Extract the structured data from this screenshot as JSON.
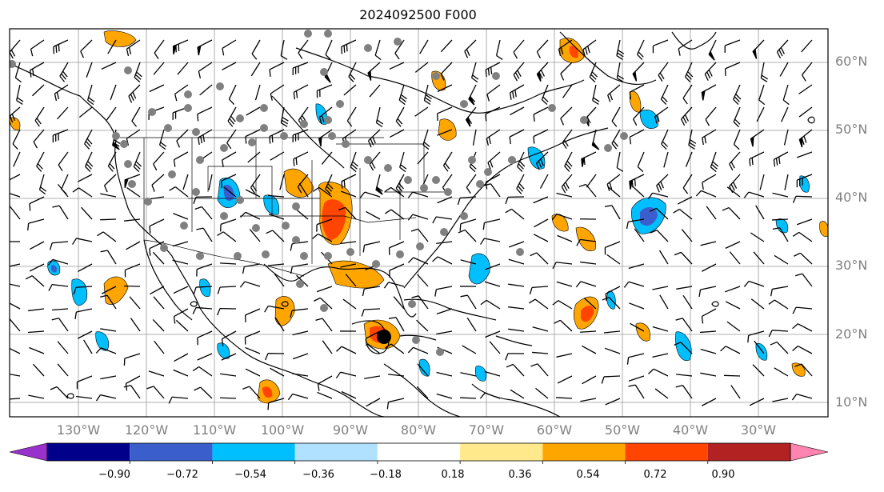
{
  "title": "2024092500 F000",
  "latitude_labels": [
    "60°N",
    "50°N",
    "40°N",
    "30°N",
    "20°N",
    "10°N"
  ],
  "longitude_labels": [
    "130°W",
    "120°W",
    "110°W",
    "100°W",
    "90°W",
    "80°W",
    "70°W",
    "60°W",
    "50°W",
    "40°W",
    "30°W"
  ],
  "colorbar": {
    "tick_labels": [
      "−0.90",
      "−0.72",
      "−0.54",
      "−0.36",
      "−0.18",
      "0.18",
      "0.36",
      "0.54",
      "0.72",
      "0.90"
    ],
    "colors": [
      "#9932cc",
      "#00008b",
      "#3a5fcd",
      "#00bfff",
      "#b0e2ff",
      "#ffffff",
      "#ffe98a",
      "#ffa500",
      "#ff4500",
      "#b22222",
      "#ff85b0"
    ]
  },
  "colors": {
    "coast": "#000000",
    "gridline": "#999999",
    "obs_dot": "#808080",
    "storm_marker": "#000000"
  }
}
